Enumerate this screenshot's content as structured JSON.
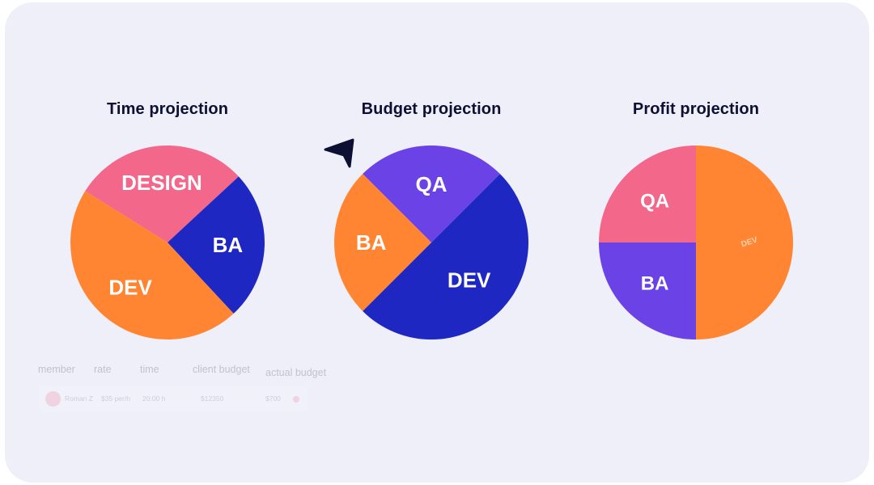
{
  "chart_data": [
    {
      "type": "pie",
      "title": "Time projection",
      "slices": [
        {
          "label": "DESIGN",
          "value": 0.292,
          "color": "#f2678a"
        },
        {
          "label": "BA",
          "value": 0.25,
          "color": "#1f27c3"
        },
        {
          "label": "DEV",
          "value": 0.458,
          "color": "#ff8533"
        }
      ]
    },
    {
      "type": "pie",
      "title": "Budget projection",
      "slices": [
        {
          "label": "QA",
          "value": 0.25,
          "color": "#6a42e6"
        },
        {
          "label": "DEV",
          "value": 0.5,
          "color": "#1f27c3"
        },
        {
          "label": "BA",
          "value": 0.25,
          "color": "#ff8533"
        }
      ]
    },
    {
      "type": "pie",
      "title": "Profit projection",
      "slices": [
        {
          "label": "DEV",
          "value": 0.5,
          "color": "#ff8533"
        },
        {
          "label": "BA",
          "value": 0.25,
          "color": "#6a42e6"
        },
        {
          "label": "QA",
          "value": 0.25,
          "color": "#f2678a"
        }
      ]
    }
  ],
  "table": {
    "headers": [
      "member",
      "rate",
      "time",
      "client budget",
      "actual budget"
    ],
    "row": {
      "name": "Roman Z",
      "rate": "$35 per/h",
      "time": "20:00 h",
      "client_budget": "$12350",
      "actual_budget": "$700"
    }
  },
  "icons": {
    "cursor": "pointer-arrow-icon"
  }
}
